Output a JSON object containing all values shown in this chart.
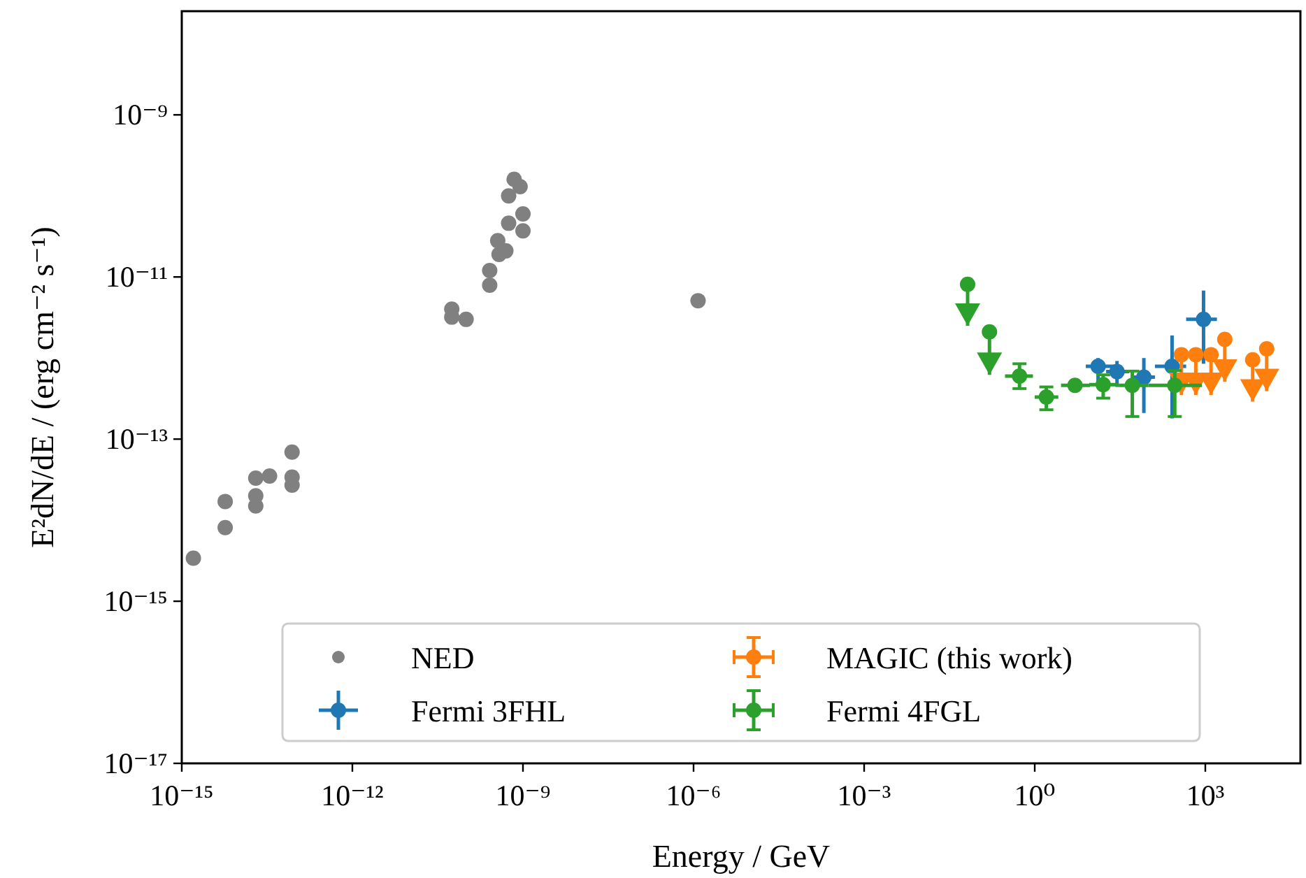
{
  "chart_data": {
    "type": "scatter",
    "xlabel": "Energy / GeV",
    "ylabel": "E²dN/dE / (erg cm⁻² s⁻¹)",
    "log": "xy",
    "marker": "circle",
    "legend": "bottom",
    "grid": false,
    "xlim": [
      1e-15,
      47000.0
    ],
    "ylim": [
      1e-17,
      1.9e-08
    ],
    "xticks": [
      {
        "value": 1e-15,
        "label": "10⁻¹⁵"
      },
      {
        "value": 1e-12,
        "label": "10⁻¹²"
      },
      {
        "value": 1e-09,
        "label": "10⁻⁹"
      },
      {
        "value": 1e-06,
        "label": "10⁻⁶"
      },
      {
        "value": 0.001,
        "label": "10⁻³"
      },
      {
        "value": 1,
        "label": "10⁰"
      },
      {
        "value": 1000,
        "label": "10³"
      }
    ],
    "yticks": [
      {
        "value": 1e-17,
        "label": "10⁻¹⁷"
      },
      {
        "value": 1e-15,
        "label": "10⁻¹⁵"
      },
      {
        "value": 1e-13,
        "label": "10⁻¹³"
      },
      {
        "value": 1e-11,
        "label": "10⁻¹¹"
      },
      {
        "value": 1e-09,
        "label": "10⁻⁹"
      }
    ],
    "series": [
      {
        "name": "NED",
        "color": "#808080",
        "x": [
          1.6e-15,
          5.8e-15,
          5.8e-15,
          2e-14,
          2e-14,
          2e-14,
          3.5e-14,
          8.7e-14,
          8.7e-14,
          8.7e-14,
          5.6e-11,
          5.6e-11,
          1e-10,
          2.6e-10,
          2.6e-10,
          3.6e-10,
          3.8e-10,
          5e-10,
          5.6e-10,
          5.6e-10,
          7e-10,
          8.9e-10,
          1e-09,
          1e-09,
          1.2e-06
        ],
        "values": [
          3.4e-15,
          1.7e-14,
          8.1e-15,
          3.3e-14,
          2e-14,
          1.5e-14,
          3.5e-14,
          6.9e-14,
          3.4e-14,
          2.7e-14,
          4e-12,
          3.2e-12,
          3e-12,
          7.9e-12,
          1.2e-11,
          2.8e-11,
          1.9e-11,
          2.1e-11,
          4.6e-11,
          1e-10,
          1.6e-10,
          1.3e-10,
          6e-11,
          3.7e-11,
          5.1e-12
        ]
      },
      {
        "name": "Fermi 3FHL",
        "color": "#1f77b4",
        "x": [
          13,
          28,
          83,
          260,
          930
        ],
        "values": [
          7.9e-13,
          6.8e-13,
          5.8e-13,
          7.9e-13,
          3e-12
        ],
        "errors": [
          [
            5.2e-13,
            1e-12
          ],
          [
            4.4e-13,
            9.2e-13
          ],
          [
            2.1e-13,
            1e-12
          ],
          [
            1.8e-13,
            1.9e-12
          ],
          [
            8.5e-13,
            6.8e-12
          ]
        ],
        "xerrors": [
          [
            7.9,
            26
          ],
          [
            18,
            46
          ],
          [
            50,
            130
          ],
          [
            130,
            460
          ],
          [
            460,
            1600
          ]
        ]
      },
      {
        "name": "MAGIC (this work)",
        "color": "#ff7f0e",
        "x": [
          380,
          680,
          1260,
          2200,
          6800,
          12000
        ],
        "values": [
          1.1e-12,
          1.1e-12,
          1.1e-12,
          1.7e-12,
          9.5e-13,
          1.3e-12
        ],
        "errors": [
          [
            3.5e-13,
            1.1e-12
          ],
          [
            3.5e-13,
            1.1e-12
          ],
          [
            3.5e-13,
            1.1e-12
          ],
          [
            5.1e-13,
            1.7e-12
          ],
          [
            2.9e-13,
            9.5e-13
          ],
          [
            3.9e-13,
            1.3e-12
          ]
        ]
      },
      {
        "name": "Fermi 4FGL",
        "color": "#2ca02c",
        "x": [
          0.066,
          0.16,
          0.54,
          1.6,
          5.1,
          16,
          52,
          290
        ],
        "values": [
          8.1e-12,
          2.1e-12,
          6e-13,
          3.3e-13,
          4.6e-13,
          4.7e-13,
          4.6e-13,
          4.6e-13
        ],
        "errors": [
          [
            2.5e-12,
            8.1e-12
          ],
          [
            6.2e-13,
            2.1e-12
          ],
          [
            4.2e-13,
            8.5e-13
          ],
          [
            2.3e-13,
            4.4e-13
          ],
          null,
          [
            3.2e-13,
            6.2e-13
          ],
          [
            1.9e-13,
            6.9e-13
          ],
          [
            1.9e-13,
            7e-13
          ]
        ],
        "xerrors": [
          null,
          null,
          [
            0.3,
            0.93
          ],
          [
            1,
            2.6
          ],
          [
            2.9,
            9.4
          ],
          [
            9.1,
            30
          ],
          [
            30,
            100
          ],
          [
            100,
            870
          ]
        ]
      }
    ]
  }
}
